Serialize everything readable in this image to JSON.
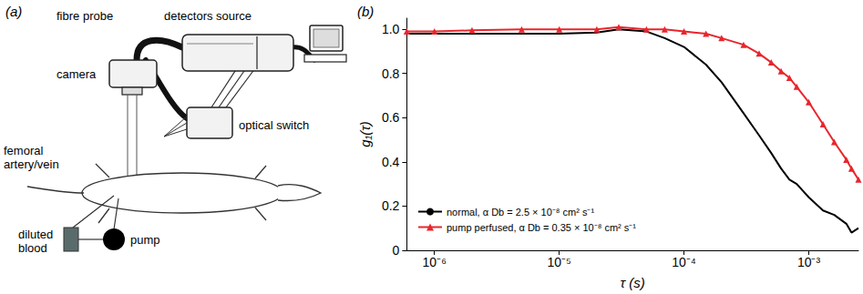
{
  "panel_labels": [
    "(a)",
    "(b)"
  ],
  "diagram": {
    "labels": {
      "fibre_probe": "fibre probe",
      "detectors_source": "detectors source",
      "camera": "camera",
      "optical_switch": "optical switch",
      "femoral": "femoral artery/vein",
      "blood": "diluted blood",
      "pump": "pump"
    }
  },
  "chart_data": {
    "type": "line",
    "x_label": "τ (s)",
    "y_label": "g₁(τ)",
    "log": "x",
    "grid": false,
    "legend": "lower left",
    "x": [
      6e-07,
      1e-06,
      2e-06,
      5e-06,
      1e-05,
      2e-05,
      3e-05,
      5e-05,
      7e-05,
      0.0001,
      0.00015,
      0.0002,
      0.0003,
      0.0004,
      0.0005,
      0.0006,
      0.0007,
      0.0008,
      0.001,
      0.0013,
      0.0016,
      0.002,
      0.0022,
      0.0025
    ],
    "series": [
      {
        "name": "normal, α Db = 2.5 × 10⁻⁸ cm² s⁻¹",
        "color": "#000000",
        "marker": "none",
        "line_style": "solid",
        "values": [
          0.98,
          0.98,
          0.98,
          0.98,
          0.98,
          0.985,
          1.0,
          0.99,
          0.96,
          0.92,
          0.84,
          0.76,
          0.62,
          0.52,
          0.44,
          0.37,
          0.32,
          0.3,
          0.24,
          0.18,
          0.16,
          0.12,
          0.08,
          0.1
        ]
      },
      {
        "name": "pump perfused, α Db = 0.35 × 10⁻⁸ cm² s⁻¹",
        "color": "#e8262c",
        "marker": "triangle",
        "line_style": "solid",
        "values": [
          0.99,
          0.99,
          0.995,
          1.0,
          1.0,
          1.0,
          1.01,
          1.0,
          1.0,
          0.99,
          0.98,
          0.96,
          0.93,
          0.89,
          0.85,
          0.81,
          0.78,
          0.74,
          0.67,
          0.57,
          0.49,
          0.41,
          0.37,
          0.32
        ]
      }
    ],
    "xlim": [
      6e-07,
      0.0025
    ],
    "xticks": [
      {
        "value": 1e-06,
        "label": "10⁻⁶"
      },
      {
        "value": 1e-05,
        "label": "10⁻⁵"
      },
      {
        "value": 0.0001,
        "label": "10⁻⁴"
      },
      {
        "value": 0.001,
        "label": "10⁻³"
      }
    ],
    "ylim": [
      0,
      1.05
    ],
    "yticks": [
      0,
      0.2,
      0.4,
      0.6,
      0.8,
      {
        "value": 1,
        "label": "1.0"
      }
    ]
  }
}
